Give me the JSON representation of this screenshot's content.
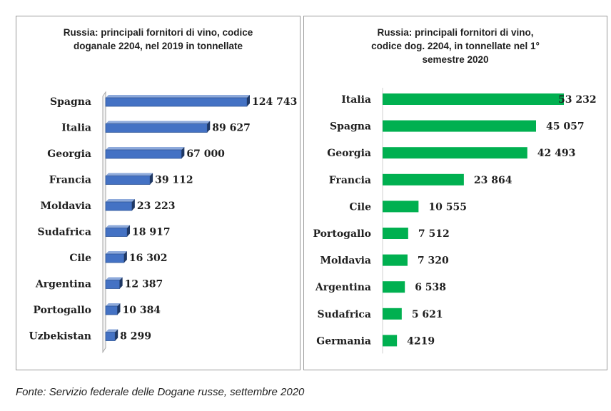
{
  "chart_data": [
    {
      "type": "bar",
      "orientation": "horizontal",
      "title": "Russia: principali fornitori di vino, codice\ndoganale 2204, nel 2019 in tonnellate",
      "categories": [
        "Spagna",
        "Italia",
        "Georgia",
        "Francia",
        "Moldavia",
        "Sudafrica",
        "Cile",
        "Argentina",
        "Portogallo",
        "Uzbekistan"
      ],
      "values": [
        124743,
        89627,
        67000,
        39112,
        23223,
        18917,
        16302,
        12387,
        10384,
        8299
      ],
      "value_labels": [
        "124 743",
        "89 627",
        "67 000",
        "39 112",
        "23 223",
        "18 917",
        "16 302",
        "12 387",
        "10 384",
        "8 299"
      ],
      "xlim": [
        0,
        124743
      ],
      "color": "#4472C4",
      "style": "3d",
      "grid": false
    },
    {
      "type": "bar",
      "orientation": "horizontal",
      "title": "Russia: principali fornitori di vino,\ncodice dog. 2204, in tonnellate nel 1°\nsemestre 2020",
      "categories": [
        "Italia",
        "Spagna",
        "Georgia",
        "Francia",
        "Cile",
        "Portogallo",
        "Moldavia",
        "Argentina",
        "Sudafrica",
        "Germania"
      ],
      "values": [
        53232,
        45057,
        42493,
        23864,
        10555,
        7512,
        7320,
        6538,
        5621,
        4219
      ],
      "value_labels": [
        "53 232",
        "45 057",
        "42 493",
        "23 864",
        "10 555",
        "7 512",
        "7 320",
        "6 538",
        "5 621",
        "4219"
      ],
      "xlim": [
        0,
        53232
      ],
      "color": "#00B050",
      "style": "flat",
      "grid": false
    }
  ],
  "source": "Fonte: Servizio federale delle Dogane russe, settembre 2020"
}
